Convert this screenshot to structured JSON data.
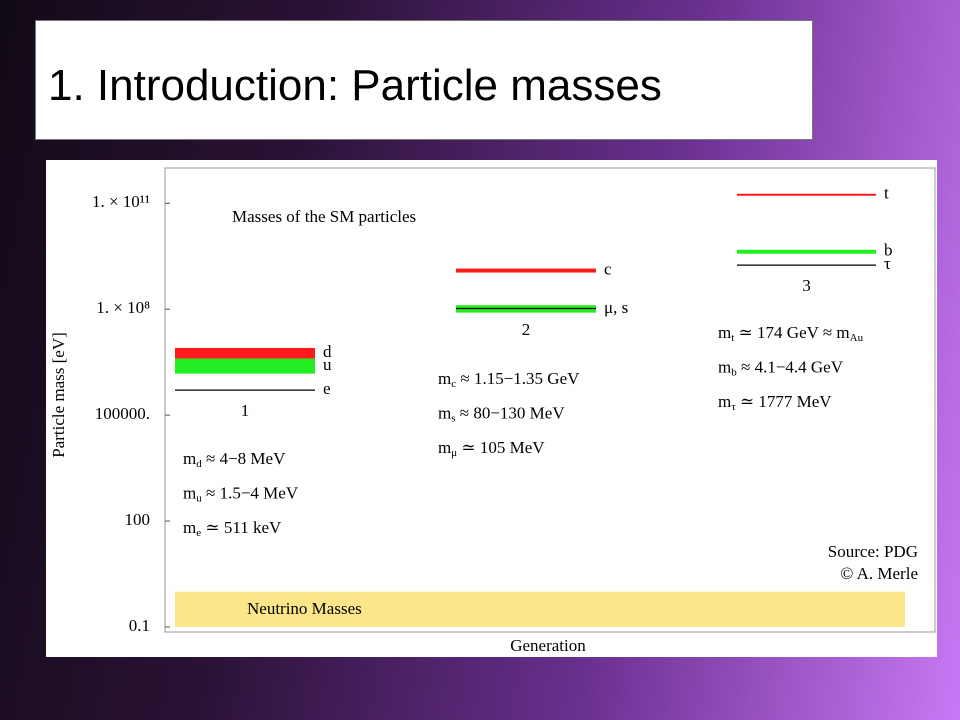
{
  "slide_title": "1. Introduction: Particle masses",
  "chart_data": {
    "type": "level",
    "title": "Masses of the SM particles",
    "y_label": "Particle mass [eV]",
    "x_label": "Generation",
    "yscale": "log",
    "ylim": [
      0.072,
      1000000000000.0
    ],
    "yticks": [
      {
        "value": 100000000000.0,
        "label": "1. × 10¹¹"
      },
      {
        "value": 100000000.0,
        "label": "1. × 10⁸"
      },
      {
        "value": 100000,
        "label": "100000."
      },
      100,
      0.1
    ],
    "categories": [
      "1",
      "2",
      "3"
    ],
    "levels": [
      {
        "label": "d",
        "generation": 0,
        "low": 4000000,
        "high": 8000000,
        "color": "#ff1a1a"
      },
      {
        "label": "u",
        "generation": 0,
        "low": 1500000,
        "high": 4000000,
        "color": "#22ee22"
      },
      {
        "label": "e",
        "generation": 0,
        "value": 511000,
        "color": "#000000"
      },
      {
        "label": "c",
        "generation": 1,
        "low": 1150000000,
        "high": 1350000000,
        "color": "#ff1a1a"
      },
      {
        "label": "μ, s",
        "generation": 1,
        "low": 80000000,
        "high": 130000000,
        "color": "#22ee22"
      },
      {
        "generation": 1,
        "value": 105000000,
        "color": "#000000"
      },
      {
        "label": "t",
        "generation": 2,
        "value": 174000000000,
        "color": "#ff1a1a"
      },
      {
        "label": "b",
        "generation": 2,
        "low": 4100000000,
        "high": 4400000000,
        "color": "#22ee22"
      },
      {
        "label": "τ",
        "generation": 2,
        "value": 1777000000,
        "color": "#000000"
      }
    ],
    "neutrino_band": {
      "label": "Neutrino Masses",
      "low": 0.1,
      "high": 1,
      "color": "#fde68a"
    },
    "formulas": [
      [
        [
          {
            "text": "m"
          },
          {
            "sub": "d"
          },
          {
            "text": " ≈ 4−8 MeV"
          }
        ],
        [
          {
            "text": "m"
          },
          {
            "sub": "u"
          },
          {
            "text": " ≈ 1.5−4 MeV"
          }
        ],
        [
          {
            "text": "m"
          },
          {
            "sub": "e"
          },
          {
            "text": " ≃ 511 keV"
          }
        ]
      ],
      [
        [
          {
            "text": "m"
          },
          {
            "sub": "c"
          },
          {
            "text": " ≈ 1.15−1.35 GeV"
          }
        ],
        [
          {
            "text": "m"
          },
          {
            "sub": "s"
          },
          {
            "text": " ≈ 80−130 MeV"
          }
        ],
        [
          {
            "text": "m"
          },
          {
            "sub": "μ"
          },
          {
            "text": " ≃ 105 MeV"
          }
        ]
      ],
      [
        [
          {
            "text": "m"
          },
          {
            "sub": "t"
          },
          {
            "text": " ≃ 174 GeV ≈ m"
          },
          {
            "sub": "Au"
          }
        ],
        [
          {
            "text": "m"
          },
          {
            "sub": "b"
          },
          {
            "text": " ≈ 4.1−4.4 GeV"
          }
        ],
        [
          {
            "text": "m"
          },
          {
            "sub": "τ"
          },
          {
            "text": " ≃ 1777 MeV"
          }
        ]
      ]
    ],
    "source": [
      "Source: PDG",
      "© A. Merle"
    ]
  }
}
